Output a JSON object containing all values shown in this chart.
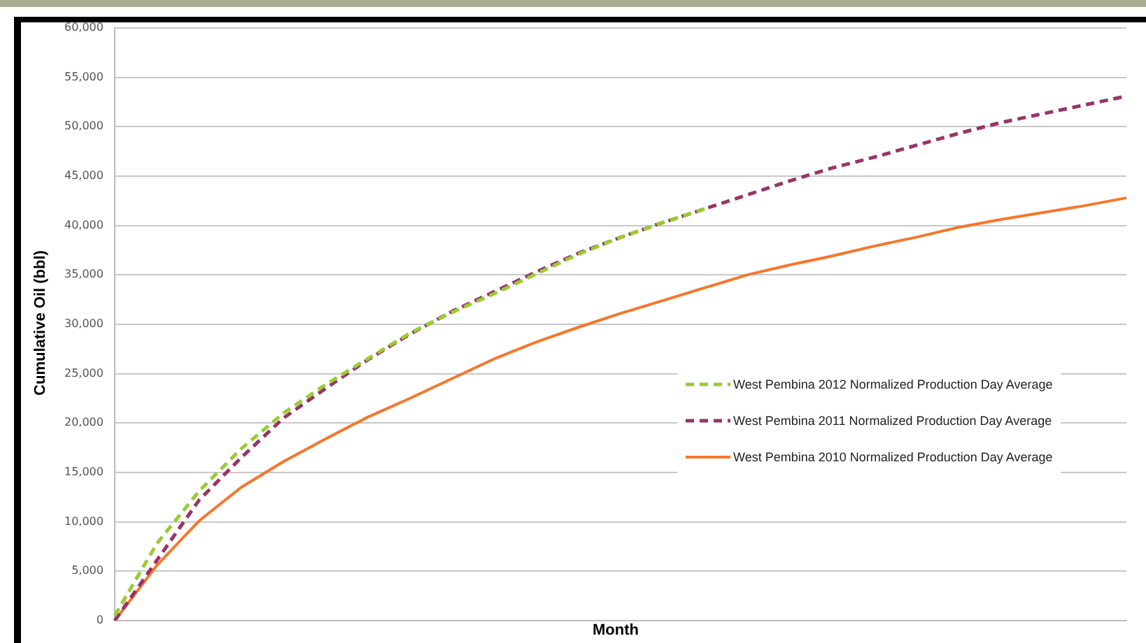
{
  "chart_data": {
    "type": "line",
    "xlabel": "Month",
    "ylabel": "Cumulative Oil (bbl)",
    "categories": [
      null,
      null,
      null,
      null,
      null,
      null,
      null,
      null,
      null,
      null,
      null,
      null,
      null,
      null,
      null,
      null,
      null,
      null,
      null,
      null,
      null,
      null,
      null,
      null,
      null
    ],
    "ylim": [
      0,
      60000
    ],
    "yticks": [
      {
        "value": 0,
        "label": "0"
      },
      {
        "value": 5000,
        "label": "5,000"
      },
      {
        "value": 10000,
        "label": "10,000"
      },
      {
        "value": 15000,
        "label": "15,000"
      },
      {
        "value": 20000,
        "label": "20,000"
      },
      {
        "value": 25000,
        "label": "25,000"
      },
      {
        "value": 30000,
        "label": "30,000"
      },
      {
        "value": 35000,
        "label": "35,000"
      },
      {
        "value": 40000,
        "label": "40,000"
      },
      {
        "value": 45000,
        "label": "45,000"
      },
      {
        "value": 50000,
        "label": "50,000"
      },
      {
        "value": 55000,
        "label": "55,000"
      },
      {
        "value": 60000,
        "label": "60,000"
      }
    ],
    "grid": "y",
    "legend": "right",
    "tick_labels": "y",
    "marker": "none",
    "series": [
      {
        "name": "West Pembina 2012 Normalized Production Day Average",
        "color": "#99cc33",
        "line_style": "dashed",
        "values": [
          500,
          7800,
          13100,
          17400,
          21000,
          23900,
          26500,
          29100,
          31200,
          33100,
          35100,
          37100,
          38800,
          40300,
          41700,
          null,
          null,
          null,
          null,
          null,
          null,
          null,
          null,
          null,
          null
        ]
      },
      {
        "name": "West Pembina 2011 Normalized Production Day Average",
        "color": "#993366",
        "line_style": "dashed",
        "values": [
          0,
          6100,
          12200,
          16500,
          20500,
          23500,
          26400,
          29000,
          31300,
          33300,
          35300,
          37200,
          38800,
          40300,
          41700,
          43100,
          44500,
          45800,
          46900,
          48100,
          49300,
          50400,
          51300,
          52200,
          53100
        ]
      },
      {
        "name": "West Pembina 2010 Normalized Production Day Average",
        "color": "#f7762a",
        "line_style": "solid",
        "values": [
          0,
          5600,
          10100,
          13500,
          16100,
          18400,
          20600,
          22500,
          24500,
          26500,
          28200,
          29700,
          31100,
          32400,
          33700,
          35000,
          36000,
          36900,
          37900,
          38800,
          39800,
          40600,
          41300,
          42000,
          42800
        ]
      }
    ]
  }
}
